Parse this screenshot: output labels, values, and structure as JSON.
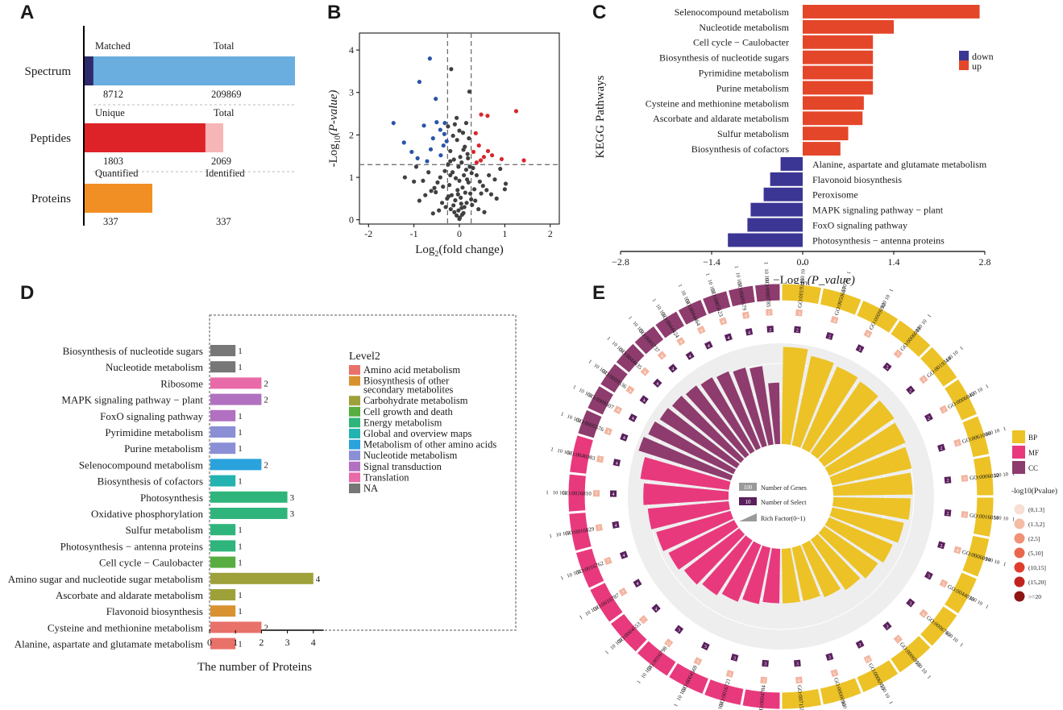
{
  "panels": {
    "A": "A",
    "B": "B",
    "C": "C",
    "D": "D",
    "E": "E"
  },
  "chart_data": [
    {
      "id": "A",
      "type": "bar",
      "rows": [
        {
          "label": "Spectrum",
          "left_label": "Matched",
          "right_label": "Total",
          "left_value": 8712,
          "total_value": 209869,
          "left_text": "8712",
          "right_text": "209869",
          "left_color": "#2e2a6b",
          "total_color": "#6aaee0"
        },
        {
          "label": "Peptides",
          "left_label": "Unique",
          "right_label": "Total",
          "left_value": 1803,
          "total_value": 2069,
          "left_text": "1803",
          "right_text": "2069",
          "left_color": "#de2328",
          "total_color": "#f6b6b7"
        },
        {
          "label": "Proteins",
          "left_label": "Quantified",
          "right_label": "Identified",
          "left_value": 337,
          "total_value": 337,
          "left_text": "337",
          "right_text": "337",
          "left_color": "#f28f24",
          "total_color": "#f28f24"
        }
      ]
    },
    {
      "id": "B",
      "type": "scatter",
      "xlabel_main": "Log",
      "xlabel_sub": "2",
      "xlabel_rest": "(fold change)",
      "ylabel_pre": "-Log",
      "ylabel_sub": "10",
      "ylabel_rest": "(P-value)",
      "xlim": [
        -2.2,
        2.2
      ],
      "ylim": [
        -0.1,
        4.4
      ],
      "xticks": [
        -2,
        -1,
        0,
        1,
        2
      ],
      "yticks": [
        0,
        1,
        2,
        3,
        4
      ],
      "vlines": [
        -0.26,
        0.26
      ],
      "hline": 1.3,
      "colors": {
        "down": "#2b54a8",
        "up": "#d8262e",
        "ns": "#404040"
      },
      "down": [
        [
          -0.65,
          3.8
        ],
        [
          -0.88,
          3.25
        ],
        [
          -1.45,
          2.28
        ],
        [
          -0.78,
          2.22
        ],
        [
          -0.52,
          2.85
        ],
        [
          -0.32,
          2.28
        ],
        [
          -0.42,
          2.12
        ],
        [
          -0.58,
          1.92
        ],
        [
          -0.92,
          1.45
        ],
        [
          -1.05,
          1.6
        ],
        [
          -0.71,
          1.38
        ],
        [
          -0.41,
          1.52
        ],
        [
          -0.28,
          1.85
        ],
        [
          -0.5,
          2.3
        ],
        [
          -0.33,
          2.02
        ],
        [
          -0.63,
          1.66
        ],
        [
          -1.22,
          1.82
        ],
        [
          -0.35,
          1.75
        ]
      ],
      "up": [
        [
          0.62,
          2.45
        ],
        [
          1.25,
          2.56
        ],
        [
          0.48,
          2.48
        ],
        [
          0.36,
          2.04
        ],
        [
          0.43,
          1.75
        ],
        [
          0.63,
          1.62
        ],
        [
          0.72,
          1.52
        ],
        [
          1.42,
          1.4
        ],
        [
          0.54,
          1.48
        ],
        [
          0.38,
          1.35
        ],
        [
          0.93,
          1.43
        ],
        [
          0.31,
          1.6
        ],
        [
          0.47,
          1.4
        ]
      ],
      "ns": [
        [
          -0.18,
          3.55
        ],
        [
          0.22,
          3.02
        ],
        [
          -0.1,
          2.25
        ],
        [
          0.08,
          2.05
        ],
        [
          -0.05,
          1.88
        ],
        [
          0.12,
          1.72
        ],
        [
          -0.2,
          1.62
        ],
        [
          0.18,
          1.55
        ],
        [
          0.02,
          1.48
        ],
        [
          -0.12,
          1.42
        ],
        [
          0.05,
          1.35
        ],
        [
          -0.02,
          1.25
        ],
        [
          0.15,
          1.18
        ],
        [
          -0.15,
          1.12
        ],
        [
          0.1,
          1.05
        ],
        [
          -0.08,
          0.98
        ],
        [
          0.0,
          0.92
        ],
        [
          0.2,
          0.88
        ],
        [
          -0.22,
          0.82
        ],
        [
          0.07,
          0.76
        ],
        [
          -0.04,
          0.7
        ],
        [
          0.13,
          0.64
        ],
        [
          -0.17,
          0.58
        ],
        [
          0.03,
          0.52
        ],
        [
          -0.09,
          0.46
        ],
        [
          0.16,
          0.4
        ],
        [
          -0.13,
          0.34
        ],
        [
          0.05,
          0.28
        ],
        [
          -0.02,
          0.22
        ],
        [
          0.09,
          0.16
        ],
        [
          -0.06,
          0.1
        ],
        [
          0.01,
          0.05
        ],
        [
          0.24,
          0.62
        ],
        [
          -0.24,
          0.55
        ],
        [
          0.11,
          0.3
        ],
        [
          -0.19,
          0.25
        ],
        [
          0.06,
          0.12
        ],
        [
          -0.11,
          0.18
        ],
        [
          0.0,
          0.02
        ],
        [
          0.04,
          0.38
        ],
        [
          -0.03,
          0.6
        ],
        [
          0.17,
          0.95
        ],
        [
          -0.2,
          1.05
        ],
        [
          0.23,
          1.25
        ],
        [
          -0.25,
          1.3
        ],
        [
          0.3,
          1.22
        ],
        [
          -0.32,
          1.15
        ],
        [
          0.38,
          1.05
        ],
        [
          -0.42,
          1.0
        ],
        [
          0.45,
          0.9
        ],
        [
          -0.48,
          0.88
        ],
        [
          0.52,
          0.8
        ],
        [
          -0.55,
          0.75
        ],
        [
          0.6,
          0.7
        ],
        [
          -0.62,
          0.68
        ],
        [
          0.7,
          0.6
        ],
        [
          -0.75,
          0.58
        ],
        [
          0.82,
          0.5
        ],
        [
          -0.88,
          0.45
        ],
        [
          0.35,
          0.45
        ],
        [
          -0.38,
          0.4
        ],
        [
          0.28,
          0.35
        ],
        [
          -0.3,
          0.3
        ],
        [
          0.42,
          0.25
        ],
        [
          -0.45,
          0.22
        ],
        [
          0.55,
          0.18
        ],
        [
          -0.58,
          0.15
        ],
        [
          0.33,
          0.72
        ],
        [
          -0.36,
          0.78
        ],
        [
          0.48,
          0.62
        ],
        [
          -0.52,
          0.65
        ],
        [
          0.26,
          0.48
        ],
        [
          -0.27,
          0.5
        ],
        [
          0.65,
          1.05
        ],
        [
          -0.68,
          1.12
        ],
        [
          0.78,
          0.95
        ],
        [
          -0.8,
          0.92
        ],
        [
          1.0,
          0.72
        ],
        [
          -1.0,
          0.9
        ],
        [
          -1.2,
          1.0
        ],
        [
          1.02,
          0.85
        ],
        [
          0.9,
          1.2
        ],
        [
          -0.95,
          1.25
        ],
        [
          0.15,
          2.28
        ],
        [
          -0.06,
          2.4
        ],
        [
          -0.25,
          2.2
        ],
        [
          0.21,
          1.92
        ],
        [
          -0.14,
          1.98
        ],
        [
          0.0,
          2.1
        ],
        [
          0.09,
          1.65
        ],
        [
          -0.2,
          1.38
        ],
        [
          0.19,
          1.45
        ],
        [
          0.27,
          1.1
        ]
      ]
    },
    {
      "id": "C",
      "type": "bar",
      "orientation": "horizontal",
      "xlabel_pre": "−Log",
      "xlabel_sub": "10",
      "xlabel_rest": "(P_value)",
      "ylabel": "KEGG Pathways",
      "xlim": [
        -2.8,
        2.8
      ],
      "xticks": [
        "-2.8",
        "-1.4",
        "0.0",
        "1.4",
        "2.8"
      ],
      "legend": [
        {
          "name": "down",
          "color": "#3b3694"
        },
        {
          "name": "up",
          "color": "#e4462a"
        }
      ],
      "categories": [
        "Selenocompound metabolism",
        "Nucleotide metabolism",
        "Cell cycle − Caulobacter",
        "Biosynthesis of nucleotide sugars",
        "Pyrimidine metabolism",
        "Purine metabolism",
        "Cysteine and methionine metabolism",
        "Ascorbate and aldarate metabolism",
        "Sulfur metabolism",
        "Biosynthesis of cofactors",
        "Alanine, aspartate and glutamate metabolism",
        "Flavonoid biosynthesis",
        "Peroxisome",
        "MAPK signaling pathway − plant",
        "FoxO signaling pathway",
        "Photosynthesis − antenna proteins"
      ],
      "values": [
        2.72,
        1.4,
        1.08,
        1.08,
        1.08,
        1.08,
        0.94,
        0.92,
        0.7,
        0.58,
        -0.34,
        -0.5,
        -0.6,
        -0.8,
        -0.85,
        -1.15
      ]
    },
    {
      "id": "D",
      "type": "bar",
      "orientation": "horizontal",
      "xlabel": "The number of Proteins",
      "xlim": [
        0,
        4.4
      ],
      "xticks": [
        "0",
        "1",
        "2",
        "3",
        "4"
      ],
      "legend_title": "Level2",
      "legend": [
        {
          "name": "Amino acid metabolism",
          "color": "#e8716a"
        },
        {
          "name": "Biosynthesis of other",
          "name2": "secondary metabolites",
          "color": "#d8922f"
        },
        {
          "name": "Carbohydrate metabolism",
          "color": "#9ea13a"
        },
        {
          "name": "Cell growth and death",
          "color": "#57ad3f"
        },
        {
          "name": "Energy metabolism",
          "color": "#2fb57b"
        },
        {
          "name": "Global and overview maps",
          "color": "#23b3b0"
        },
        {
          "name": "Metabolism of other amino acids",
          "color": "#2aa2dc"
        },
        {
          "name": "Nucleotide metabolism",
          "color": "#8a8fd6"
        },
        {
          "name": "Signal transduction",
          "color": "#b171c0"
        },
        {
          "name": "Translation",
          "color": "#e86aa8"
        },
        {
          "name": "NA",
          "color": "#777777"
        }
      ],
      "categories": [
        "Biosynthesis of nucleotide sugars",
        "Nucleotide metabolism",
        "Ribosome",
        "MAPK signaling pathway − plant",
        "FoxO signaling pathway",
        "Pyrimidine metabolism",
        "Purine metabolism",
        "Selenocompound metabolism",
        "Biosynthesis of cofactors",
        "Photosynthesis",
        "Oxidative phosphorylation",
        "Sulfur metabolism",
        "Photosynthesis − antenna proteins",
        "Cell cycle − Caulobacter",
        "Amino sugar and nucleotide sugar metabolism",
        "Ascorbate and aldarate metabolism",
        "Flavonoid biosynthesis",
        "Cysteine and methionine metabolism",
        "Alanine, aspartate and glutamate metabolism"
      ],
      "values": [
        1,
        1,
        2,
        2,
        1,
        1,
        1,
        2,
        1,
        3,
        3,
        1,
        1,
        1,
        4,
        1,
        1,
        2,
        1
      ],
      "value_labels": [
        "1",
        "1",
        "2",
        "2",
        "1",
        "1",
        "1",
        "2",
        "1",
        "3",
        "3",
        "1",
        "1",
        "1",
        "4",
        "1",
        "1",
        "2",
        "1"
      ],
      "colors": [
        "#777777",
        "#777777",
        "#e86aa8",
        "#b171c0",
        "#b171c0",
        "#8a8fd6",
        "#8a8fd6",
        "#2aa2dc",
        "#23b3b0",
        "#2fb57b",
        "#2fb57b",
        "#2fb57b",
        "#2fb57b",
        "#57ad3f",
        "#9ea13a",
        "#9ea13a",
        "#d8922f",
        "#e8716a",
        "#e8716a"
      ]
    },
    {
      "id": "E",
      "type": "circular-bar",
      "categories_bp": [
        "GO:0019346",
        "GO:0050667",
        "GO:0009092",
        "GO:0006081",
        "GO:0019344",
        "GO:0006040",
        "GO:0061008",
        "GO:0006032",
        "GO:0016051",
        "GO:0006094",
        "GO:0044036",
        "GO:0006760",
        "GO:0006959",
        "GO:0006955",
        "GO:0000096",
        "GO:0071554"
      ],
      "categories_mf": [
        "GO:0004784",
        "GO:0016721",
        "GO:0004569",
        "GO:0016798",
        "GO:0004553",
        "GO:0016787",
        "GO:0016762",
        "GO:0016829",
        "GO:0016810",
        "GO:0046983"
      ],
      "categories_cc": [
        "GO:0005576",
        "GO:0009507",
        "GO:0009536",
        "GO:0044435",
        "GO:0005737",
        "GO:0044424",
        "GO:0044464",
        "GO:0005623",
        "GO:0009579",
        "GO:0000785"
      ],
      "select_bp": [
        "2",
        "2",
        "2",
        "2",
        "2",
        "2",
        "2",
        "2",
        "2",
        "2",
        "3",
        "3",
        "3",
        "3",
        "3",
        "3"
      ],
      "genes_bp": [
        "3",
        "4",
        "4",
        "3",
        "3",
        "3",
        "3",
        "3",
        "3",
        "4",
        "5",
        "6",
        "7",
        "10",
        "6",
        "6"
      ],
      "select_mf": [
        "3",
        "3",
        "3",
        "3",
        "4",
        "4",
        "4",
        "4",
        "4",
        "4"
      ],
      "genes_mf": [
        "3",
        "3",
        "3",
        "11",
        "7",
        "7",
        "7",
        "7",
        "7",
        "7"
      ],
      "select_cc": [
        "4",
        "4",
        "4",
        "4",
        "4",
        "4",
        "4",
        "4",
        "4",
        "2"
      ],
      "genes_cc": [
        "4",
        "4",
        "4",
        "4",
        "4",
        "4",
        "4",
        "4",
        "4",
        "2"
      ],
      "rich_bp": [
        0.98,
        0.92,
        0.9,
        0.88,
        0.86,
        0.84,
        0.82,
        0.8,
        0.78,
        0.74,
        0.7,
        0.66,
        0.62,
        0.58,
        0.55,
        0.55
      ],
      "rich_mf": [
        0.55,
        0.58,
        0.62,
        0.66,
        0.7,
        0.74,
        0.78,
        0.82,
        0.86,
        0.9
      ],
      "rich_cc": [
        0.98,
        0.95,
        0.92,
        0.9,
        0.88,
        0.86,
        0.84,
        0.82,
        0.8,
        0.62
      ],
      "ticks": [
        "100",
        "10",
        "1"
      ],
      "legend_groups": [
        {
          "name": "BP",
          "color": "#ecc226"
        },
        {
          "name": "MF",
          "color": "#e8397d"
        },
        {
          "name": "CC",
          "color": "#8e3b6e"
        }
      ],
      "center_legend": [
        "Number of Genes",
        "Number of Select",
        "Rich Factor(0~1)"
      ],
      "center_legend_values": [
        "100",
        "10"
      ],
      "pvalue_title": "-log10(Pvalue)",
      "pvalue_bins": [
        {
          "label": "(0,1.3]",
          "color": "#f8dfd3"
        },
        {
          "label": "(1.3,2]",
          "color": "#f4bca4"
        },
        {
          "label": "(2,5]",
          "color": "#ef9276"
        },
        {
          "label": "(5,10]",
          "color": "#e9684d"
        },
        {
          "label": "(10,15]",
          "color": "#e03d2c"
        },
        {
          "label": "(15,20]",
          "color": "#c2221d"
        },
        {
          "label": ">=20",
          "color": "#8f1414"
        }
      ]
    }
  ]
}
